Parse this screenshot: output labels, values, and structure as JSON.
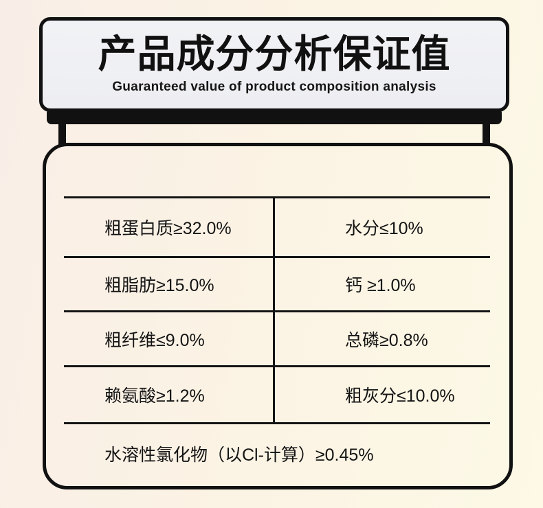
{
  "header": {
    "title": "产品成分分析保证值",
    "subtitle": "Guaranteed value of product composition analysis"
  },
  "table": {
    "rows": [
      {
        "left": "粗蛋白质≥32.0%",
        "right": "水分≤10%"
      },
      {
        "left": "粗脂肪≥15.0%",
        "right": "钙 ≥1.0%"
      },
      {
        "left": "粗纤维≤9.0%",
        "right": "总磷≥0.8%"
      },
      {
        "left": "赖氨酸≥1.2%",
        "right": "粗灰分≤10.0%"
      }
    ],
    "footer": "水溶性氯化物（以Cl-计算）≥0.45%"
  },
  "colors": {
    "ink": "#111111",
    "header_fill": "#eff0f3",
    "background_gradient_start": "#f9eee7",
    "background_gradient_end": "#fdf9e6"
  }
}
